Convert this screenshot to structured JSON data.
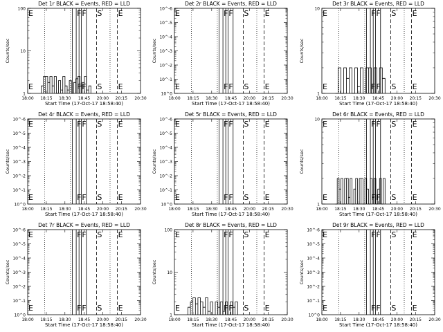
{
  "window": {
    "width": 640,
    "height": 480
  },
  "common": {
    "xlabel": "Start Time (17-Oct-17 18:58:40)",
    "ylabel": "Counts/sec",
    "x_tick_labels": [
      "18:00",
      "18:15",
      "18:30",
      "18:45",
      "20:00",
      "20:15",
      "20:30"
    ],
    "marker_letters": {
      "F": "F",
      "S": "S",
      "E": "E"
    }
  },
  "chart_data": [
    {
      "type": "line",
      "title": "Det 1r BLACK = Events, RED = LLD",
      "y_scale": "log",
      "ylim": [
        1,
        100
      ],
      "y_tick_labels": [
        "1",
        "10",
        "100"
      ],
      "series": [
        {
          "values": [
            1.5,
            2.5,
            2.5,
            1.8,
            2.5,
            1.5,
            2.5,
            1.0,
            2.0,
            1.2,
            2.5,
            1.5,
            1.2,
            2.0,
            1.0,
            1.8,
            2.2,
            2.5,
            1.5,
            1.8,
            2.5,
            1.2,
            1.5
          ]
        }
      ]
    },
    {
      "type": "line",
      "title": "Det 2r BLACK = Events, RED = LLD",
      "y_scale": "log",
      "ylim": [
        1,
        1e-06
      ],
      "y_tick_labels": [
        "10^0",
        "10^-1",
        "10^-2",
        "10^-3",
        "10^-4",
        "10^-5",
        "10^-6"
      ],
      "series": []
    },
    {
      "type": "line",
      "title": "Det 3r BLACK = Events, RED = LLD",
      "y_scale": "log",
      "ylim": [
        1,
        10
      ],
      "y_tick_labels": [
        "1",
        "10"
      ],
      "series": [
        {
          "values": [
            1.0,
            2.0,
            1.0,
            2.0,
            1.5,
            2.0,
            1.0,
            2.0,
            1.2,
            2.0,
            1.0,
            2.0,
            2.0,
            1.0,
            2.0,
            1.0,
            2.0,
            1.5
          ]
        }
      ]
    },
    {
      "type": "line",
      "title": "Det 4r BLACK = Events, RED = LLD",
      "y_scale": "log",
      "ylim": [
        1,
        1e-06
      ],
      "y_tick_labels": [
        "10^0",
        "10^-1",
        "10^-2",
        "10^-3",
        "10^-4",
        "10^-5",
        "10^-6"
      ],
      "series": []
    },
    {
      "type": "line",
      "title": "Det 5r BLACK = Events, RED = LLD",
      "y_scale": "log",
      "ylim": [
        1,
        1e-06
      ],
      "y_tick_labels": [
        "10^0",
        "10^-1",
        "10^-2",
        "10^-3",
        "10^-4",
        "10^-5",
        "10^-6"
      ],
      "series": []
    },
    {
      "type": "line",
      "title": "Det 6r BLACK = Events, RED = LLD",
      "y_scale": "log",
      "ylim": [
        1,
        10
      ],
      "y_tick_labels": [
        "1",
        "10"
      ],
      "series": [
        {
          "values": [
            1.0,
            2.0,
            1.5,
            2.0,
            1.0,
            2.0,
            2.0,
            1.2,
            2.0,
            1.0,
            1.5,
            2.0,
            1.0,
            2.0,
            2.0,
            1.0,
            2.0,
            1.5,
            1.0,
            2.0,
            1.2,
            2.0,
            1.0,
            1.5,
            2.0,
            1.0,
            2.0
          ]
        }
      ]
    },
    {
      "type": "line",
      "title": "Det 7r BLACK = Events, RED = LLD",
      "y_scale": "log",
      "ylim": [
        1,
        1e-06
      ],
      "y_tick_labels": [
        "10^0",
        "10^-1",
        "10^-2",
        "10^-3",
        "10^-4",
        "10^-5",
        "10^-6"
      ],
      "series": []
    },
    {
      "type": "line",
      "title": "Det 8r BLACK = Events, RED = LLD",
      "y_scale": "log",
      "ylim": [
        1,
        100
      ],
      "y_tick_labels": [
        "1",
        "10",
        "100"
      ],
      "series": [
        {
          "values": [
            1.5,
            2.0,
            2.5,
            1.8,
            2.5,
            2.0,
            1.5,
            2.5,
            1.2,
            2.0,
            1.0,
            2.0,
            1.5,
            2.0,
            1.2,
            2.0,
            1.0,
            2.0,
            1.5,
            2.0
          ]
        }
      ]
    },
    {
      "type": "line",
      "title": "Det 9r BLACK = Events, RED = LLD",
      "y_scale": "log",
      "ylim": [
        1,
        1e-06
      ],
      "y_tick_labels": [
        "10^0",
        "10^-1",
        "10^-2",
        "10^-3",
        "10^-4",
        "10^-5",
        "10^-6"
      ],
      "series": []
    }
  ]
}
